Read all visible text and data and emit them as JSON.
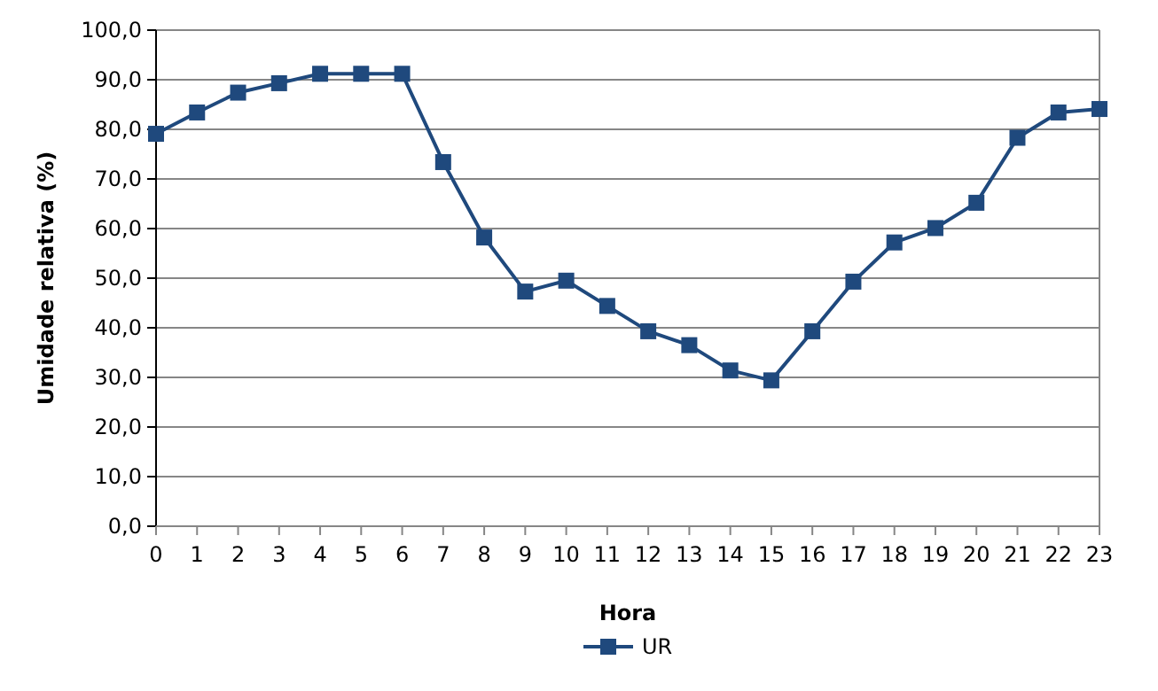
{
  "chart_data": {
    "type": "line",
    "xlabel": "Hora",
    "ylabel": "Umidade relativa (%)",
    "x": [
      0,
      1,
      2,
      3,
      4,
      5,
      6,
      7,
      8,
      9,
      10,
      11,
      12,
      13,
      14,
      15,
      16,
      17,
      18,
      19,
      20,
      21,
      22,
      23
    ],
    "series": [
      {
        "name": "UR",
        "color": "#1f497d",
        "values": [
          79.1,
          83.4,
          87.4,
          89.3,
          91.2,
          91.2,
          91.2,
          73.4,
          58.2,
          47.3,
          49.5,
          44.4,
          39.3,
          36.5,
          31.4,
          29.4,
          39.3,
          49.3,
          57.2,
          60.1,
          65.2,
          78.3,
          83.4,
          84.1
        ]
      }
    ],
    "xlim": [
      0,
      23
    ],
    "xticks": [
      0,
      1,
      2,
      3,
      4,
      5,
      6,
      7,
      8,
      9,
      10,
      11,
      12,
      13,
      14,
      15,
      16,
      17,
      18,
      19,
      20,
      21,
      22,
      23
    ],
    "ylim": [
      0,
      100
    ],
    "yticks": [
      {
        "value": 0,
        "label": "0,0"
      },
      {
        "value": 10,
        "label": "10,0"
      },
      {
        "value": 20,
        "label": "20,0"
      },
      {
        "value": 30,
        "label": "30,0"
      },
      {
        "value": 40,
        "label": "40,0"
      },
      {
        "value": 50,
        "label": "50,0"
      },
      {
        "value": 60,
        "label": "60,0"
      },
      {
        "value": 70,
        "label": "70,0"
      },
      {
        "value": 80,
        "label": "80,0"
      },
      {
        "value": 90,
        "label": "90,0"
      },
      {
        "value": 100,
        "label": "100,0"
      }
    ],
    "grid": "y",
    "legend": "bottom",
    "marker": "square",
    "line_style": "solid"
  }
}
